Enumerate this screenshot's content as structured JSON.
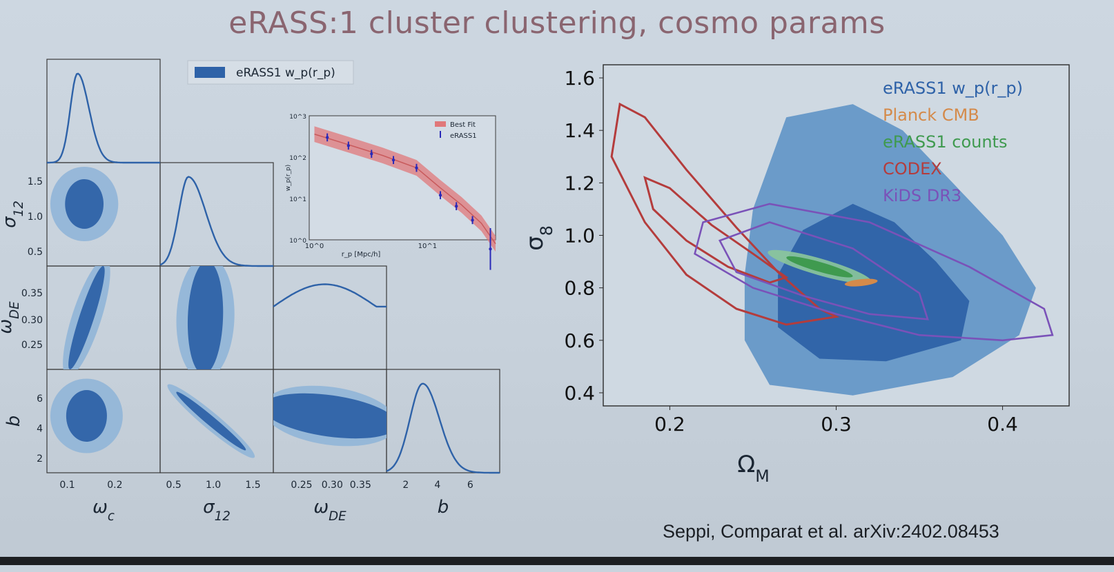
{
  "slide": {
    "title": "eRASS:1 cluster clustering, cosmo params",
    "citation": "Seppi, Comparat et al. arXiv:2402.08453"
  },
  "colors": {
    "erass1_dark": "#2e62a8",
    "erass1_light": "#5f93c6",
    "erass1_pale": "#93b6d8",
    "planck": "#d48a4a",
    "erass1_counts": "#3f9a4f",
    "codex": "#b43c3c",
    "kids": "#7a52b8",
    "bestfit": "#e0787a",
    "title": "#8a6570"
  },
  "chart_data": [
    {
      "type": "corner",
      "legend": [
        "eRASS1 w_p(r_p)"
      ],
      "parameters": [
        "ω_c",
        "σ_12",
        "ω_DE",
        "b"
      ],
      "ticks": {
        "omega_c": [
          "0.1",
          "0.2"
        ],
        "sigma12": [
          "0.5",
          "1.0",
          "1.5"
        ],
        "omegaDE": [
          "0.25",
          "0.30",
          "0.35"
        ],
        "b": [
          "2",
          "4",
          "6"
        ]
      },
      "ranges": {
        "omega_c": [
          0.06,
          0.28
        ],
        "sigma12": [
          0.3,
          1.7
        ],
        "omegaDE": [
          0.2,
          0.4
        ],
        "b": [
          1,
          8
        ]
      }
    },
    {
      "type": "line",
      "title": "",
      "xlabel": "r_p [Mpc/h]",
      "ylabel": "w_p(r_p)",
      "xscale": "log",
      "yscale": "log",
      "xlim": [
        0.9,
        40
      ],
      "ylim": [
        1,
        1000
      ],
      "xticks": [
        "10^0",
        "10^1"
      ],
      "yticks": [
        "10^0",
        "10^1",
        "10^2",
        "10^3"
      ],
      "legend": [
        "Best Fit",
        "eRASS1"
      ],
      "series": [
        {
          "name": "eRASS1",
          "x": [
            1.3,
            2.0,
            3.2,
            5.0,
            8.0,
            13.0,
            18.0,
            25.0,
            36.0
          ],
          "y": [
            300,
            190,
            120,
            85,
            55,
            12,
            6.5,
            3.0,
            0.6
          ]
        },
        {
          "name": "Best Fit",
          "x": [
            1.0,
            2.0,
            4.0,
            8.0,
            13.0,
            20.0,
            30.0,
            40.0
          ],
          "y": [
            360,
            200,
            110,
            55,
            18,
            7,
            2.5,
            0.8
          ]
        }
      ]
    },
    {
      "type": "contour",
      "xlabel": "Ω_M",
      "ylabel": "σ_8",
      "xlim": [
        0.16,
        0.44
      ],
      "ylim": [
        0.35,
        1.65
      ],
      "xticks": [
        "0.2",
        "0.3",
        "0.4"
      ],
      "yticks": [
        "0.4",
        "0.6",
        "0.8",
        "1.0",
        "1.2",
        "1.4",
        "1.6"
      ],
      "series": [
        {
          "name": "eRASS1 w_p(r_p)",
          "center": [
            0.31,
            0.85
          ]
        },
        {
          "name": "Planck CMB",
          "center": [
            0.315,
            0.81
          ]
        },
        {
          "name": "eRASS1 counts",
          "center": [
            0.29,
            0.88
          ]
        },
        {
          "name": "CODEX",
          "center": [
            0.22,
            1.05
          ]
        },
        {
          "name": "KiDS DR3",
          "center": [
            0.3,
            0.78
          ]
        }
      ]
    }
  ]
}
